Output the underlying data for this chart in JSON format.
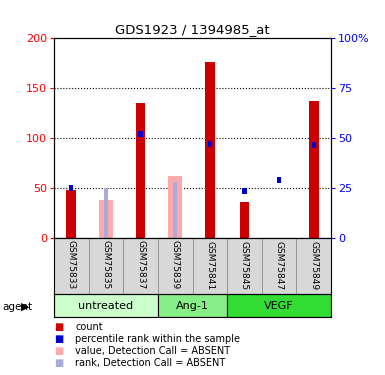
{
  "title": "GDS1923 / 1394985_at",
  "samples": [
    "GSM75833",
    "GSM75835",
    "GSM75837",
    "GSM75839",
    "GSM75841",
    "GSM75845",
    "GSM75847",
    "GSM75849"
  ],
  "groups": [
    {
      "label": "untreated",
      "indices": [
        0,
        1,
        2
      ],
      "color": "#ccffcc"
    },
    {
      "label": "Ang-1",
      "indices": [
        3,
        4
      ],
      "color": "#88ee88"
    },
    {
      "label": "VEGF",
      "indices": [
        5,
        6,
        7
      ],
      "color": "#33dd33"
    }
  ],
  "count_values": [
    48,
    0,
    135,
    0,
    176,
    36,
    0,
    137
  ],
  "rank_values": [
    50,
    0,
    104,
    0,
    94,
    47,
    58,
    93
  ],
  "absent_count": [
    0,
    38,
    0,
    62,
    0,
    0,
    0,
    0
  ],
  "absent_rank": [
    0,
    50,
    0,
    56,
    0,
    0,
    0,
    0
  ],
  "absent_flags": [
    false,
    true,
    false,
    true,
    false,
    false,
    false,
    false
  ],
  "count_color": "#cc0000",
  "rank_color": "#0000cc",
  "absent_count_color": "#ffaaaa",
  "absent_rank_color": "#aaaadd",
  "ylim_left": [
    0,
    200
  ],
  "ylim_right": [
    0,
    100
  ],
  "legend_items": [
    {
      "label": "count",
      "color": "#cc0000"
    },
    {
      "label": "percentile rank within the sample",
      "color": "#0000cc"
    },
    {
      "label": "value, Detection Call = ABSENT",
      "color": "#ffaaaa"
    },
    {
      "label": "rank, Detection Call = ABSENT",
      "color": "#aaaadd"
    }
  ]
}
